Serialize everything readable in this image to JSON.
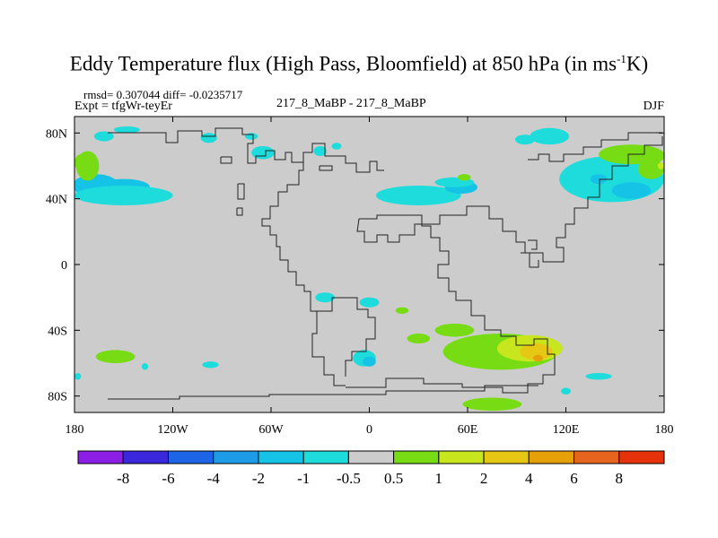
{
  "title": {
    "main": "Eddy Temperature flux (High Pass, Bloomfield) at 850 hPa (in ms",
    "sup": "-1",
    "end": "K)"
  },
  "stats": {
    "rmsd_diff": "rmsd= 0.307044  diff= -0.0235717",
    "expt": "Expt = tfgWr-teyEr",
    "runs": "217_8_MaBP - 217_8_MaBP",
    "season": "DJF"
  },
  "chart_data": {
    "type": "heatmap",
    "title": "Eddy Temperature flux (High Pass, Bloomfield) at 850 hPa (in ms-1K)",
    "season": "DJF",
    "xlim": [
      -180,
      180
    ],
    "ylim": [
      -90,
      90
    ],
    "x_ticks": [
      {
        "value": -180,
        "label": "180"
      },
      {
        "value": -120,
        "label": "120W"
      },
      {
        "value": -60,
        "label": "60W"
      },
      {
        "value": 0,
        "label": "0"
      },
      {
        "value": 60,
        "label": "60E"
      },
      {
        "value": 120,
        "label": "120E"
      },
      {
        "value": 180,
        "label": "180"
      }
    ],
    "y_ticks": [
      {
        "value": 80,
        "label": "80N"
      },
      {
        "value": 40,
        "label": "40N"
      },
      {
        "value": 0,
        "label": "0"
      },
      {
        "value": -40,
        "label": "40S"
      },
      {
        "value": -80,
        "label": "80S"
      }
    ],
    "colorbar": {
      "labels": [
        "-8",
        "-6",
        "-4",
        "-2",
        "-1",
        "-0.5",
        "0.5",
        "1",
        "2",
        "4",
        "6",
        "8"
      ],
      "colors": [
        "#8c1ee6",
        "#3c28dc",
        "#1e64e6",
        "#1e9be6",
        "#14c3e6",
        "#1edcdc",
        "#cccccc",
        "#78dc14",
        "#c8e61e",
        "#e6c814",
        "#e6a00a",
        "#e6641e",
        "#e6320a"
      ]
    },
    "regions": [
      {
        "category": "-1",
        "lon": -167,
        "lat": 48,
        "rx": 14,
        "ry": 7
      },
      {
        "category": "-1",
        "lon": -150,
        "lat": 47,
        "rx": 16,
        "ry": 5
      },
      {
        "category": "-0.5",
        "lon": -150,
        "lat": 42,
        "rx": 30,
        "ry": 6
      },
      {
        "category": "0.5",
        "lon": -172,
        "lat": 60,
        "rx": 7,
        "ry": 9
      },
      {
        "category": "0.5",
        "lon": -176,
        "lat": 62,
        "rx": 4,
        "ry": 5
      },
      {
        "category": "-0.5",
        "lon": -162,
        "lat": 78,
        "rx": 6,
        "ry": 3
      },
      {
        "category": "-0.5",
        "lon": -148,
        "lat": 82,
        "rx": 8,
        "ry": 2
      },
      {
        "category": "-0.5",
        "lon": -98,
        "lat": 77,
        "rx": 5,
        "ry": 3
      },
      {
        "category": "-0.5",
        "lon": -65,
        "lat": 68,
        "rx": 7,
        "ry": 4
      },
      {
        "category": "-0.5",
        "lon": -72,
        "lat": 78,
        "rx": 4,
        "ry": 2
      },
      {
        "category": "-0.5",
        "lon": -30,
        "lat": 69,
        "rx": 4,
        "ry": 3
      },
      {
        "category": "-0.5",
        "lon": -20,
        "lat": 72,
        "rx": 3,
        "ry": 2
      },
      {
        "category": "-0.5",
        "lon": 30,
        "lat": 42,
        "rx": 26,
        "ry": 6
      },
      {
        "category": "-1",
        "lon": 56,
        "lat": 47,
        "rx": 10,
        "ry": 4
      },
      {
        "category": "-0.5",
        "lon": 52,
        "lat": 50,
        "rx": 12,
        "ry": 3
      },
      {
        "category": "0.5",
        "lon": 58,
        "lat": 53,
        "rx": 4,
        "ry": 2
      },
      {
        "category": "-0.5",
        "lon": 110,
        "lat": 78,
        "rx": 12,
        "ry": 5
      },
      {
        "category": "-0.5",
        "lon": 95,
        "lat": 76,
        "rx": 6,
        "ry": 3
      },
      {
        "category": "-0.5",
        "lon": 148,
        "lat": 52,
        "rx": 32,
        "ry": 14
      },
      {
        "category": "-1",
        "lon": 160,
        "lat": 45,
        "rx": 12,
        "ry": 5
      },
      {
        "category": "-1",
        "lon": 140,
        "lat": 52,
        "rx": 5,
        "ry": 3
      },
      {
        "category": "0.5",
        "lon": 160,
        "lat": 67,
        "rx": 20,
        "ry": 6
      },
      {
        "category": "0.5",
        "lon": 172,
        "lat": 58,
        "rx": 8,
        "ry": 6
      },
      {
        "category": "0.5",
        "lon": 175,
        "lat": 66,
        "rx": 5,
        "ry": 4
      },
      {
        "category": "1",
        "lon": 178,
        "lat": 60,
        "rx": 2,
        "ry": 2
      },
      {
        "category": "0.5",
        "lon": -155,
        "lat": -56,
        "rx": 12,
        "ry": 4
      },
      {
        "category": "-0.5",
        "lon": -137,
        "lat": -62,
        "rx": 2,
        "ry": 2
      },
      {
        "category": "-0.5",
        "lon": -178,
        "lat": -68,
        "rx": 2,
        "ry": 2
      },
      {
        "category": "-0.5",
        "lon": -97,
        "lat": -61,
        "rx": 5,
        "ry": 2
      },
      {
        "category": "-0.5",
        "lon": -27,
        "lat": -20,
        "rx": 6,
        "ry": 3
      },
      {
        "category": "-0.5",
        "lon": 0,
        "lat": -23,
        "rx": 6,
        "ry": 3
      },
      {
        "category": "0.5",
        "lon": 20,
        "lat": -28,
        "rx": 4,
        "ry": 2
      },
      {
        "category": "0.5",
        "lon": 52,
        "lat": -40,
        "rx": 12,
        "ry": 4
      },
      {
        "category": "0.5",
        "lon": 30,
        "lat": -45,
        "rx": 7,
        "ry": 3
      },
      {
        "category": "0.5",
        "lon": 80,
        "lat": -53,
        "rx": 35,
        "ry": 11
      },
      {
        "category": "0.5",
        "lon": 75,
        "lat": -85,
        "rx": 18,
        "ry": 4
      },
      {
        "category": "1",
        "lon": 98,
        "lat": -51,
        "rx": 20,
        "ry": 8
      },
      {
        "category": "2",
        "lon": 102,
        "lat": -53,
        "rx": 10,
        "ry": 5
      },
      {
        "category": "4",
        "lon": 103,
        "lat": -57,
        "rx": 3,
        "ry": 2
      },
      {
        "category": "-0.5",
        "lon": -3,
        "lat": -57,
        "rx": 7,
        "ry": 5
      },
      {
        "category": "-1",
        "lon": 0,
        "lat": -59,
        "rx": 4,
        "ry": 3
      },
      {
        "category": "-0.5",
        "lon": 140,
        "lat": -68,
        "rx": 8,
        "ry": 2
      },
      {
        "category": "-0.5",
        "lon": 120,
        "lat": -77,
        "rx": 3,
        "ry": 2
      }
    ]
  }
}
